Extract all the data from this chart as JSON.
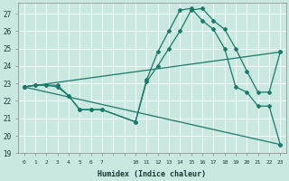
{
  "xlabel": "Humidex (Indice chaleur)",
  "bg_color": "#c8e8e0",
  "grid_color": "#ffffff",
  "line_color": "#1a7a6a",
  "xlim": [
    -0.5,
    23.5
  ],
  "ylim": [
    19,
    27.6
  ],
  "yticks": [
    19,
    20,
    21,
    22,
    23,
    24,
    25,
    26,
    27
  ],
  "line1_x": [
    0,
    1,
    2,
    3,
    4,
    5,
    6,
    7,
    10,
    11,
    12,
    13,
    14,
    15,
    16,
    17,
    18,
    19,
    20,
    21,
    22,
    23
  ],
  "line1_y": [
    22.8,
    22.9,
    22.9,
    22.9,
    22.3,
    21.5,
    21.5,
    21.5,
    20.8,
    23.2,
    24.8,
    26.0,
    27.2,
    27.3,
    26.6,
    26.1,
    25.0,
    22.8,
    22.5,
    21.7,
    21.7,
    19.5
  ],
  "line2_x": [
    0,
    1,
    2,
    3,
    4,
    5,
    6,
    7,
    10,
    11,
    12,
    13,
    14,
    15,
    16,
    17,
    18,
    19,
    20,
    21,
    22,
    23
  ],
  "line2_y": [
    22.8,
    22.9,
    22.9,
    22.8,
    22.3,
    21.5,
    21.5,
    21.5,
    20.8,
    23.1,
    24.0,
    25.0,
    26.0,
    27.2,
    27.3,
    26.6,
    26.1,
    25.0,
    23.7,
    22.5,
    22.5,
    24.8
  ],
  "line3_x": [
    0,
    23
  ],
  "line3_y": [
    22.8,
    19.5
  ],
  "line4_x": [
    0,
    23
  ],
  "line4_y": [
    22.8,
    24.8
  ]
}
